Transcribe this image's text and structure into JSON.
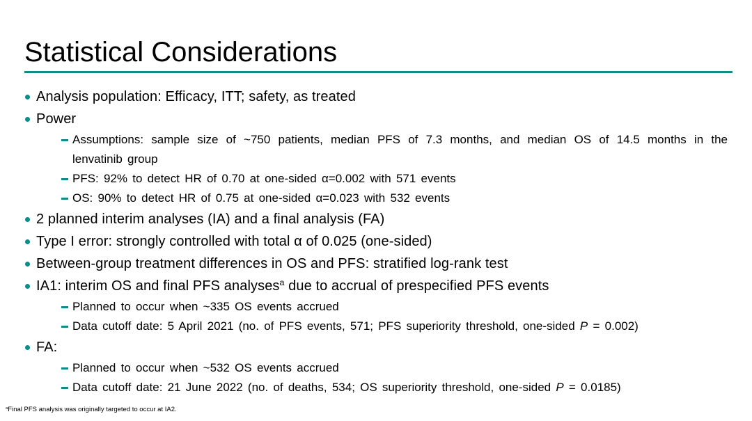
{
  "slide": {
    "title": "Statistical Considerations",
    "accent_color": "#0E8C8C",
    "footnote": {
      "sup": "a",
      "text": "Final PFS analysis was originally targeted to occur at IA2."
    }
  },
  "bullets": {
    "items": [
      {
        "level": 1,
        "text": "Analysis population: Efficacy, ITT; safety, as treated"
      },
      {
        "level": 1,
        "text": "Power"
      },
      {
        "level": 2,
        "text": "Assumptions: sample size of ~750 patients, median PFS of 7.3 months, and median OS of 14.5 months in the lenvatinib group"
      },
      {
        "level": 2,
        "text": "PFS: 92% to detect HR of 0.70 at one-sided α=0.002 with 571 events"
      },
      {
        "level": 2,
        "text": "OS: 90% to detect HR of 0.75 at one-sided α=0.023 with 532 events"
      },
      {
        "level": 1,
        "text": "2 planned interim analyses (IA) and a final analysis (FA)"
      },
      {
        "level": 1,
        "text": "Type I error: strongly controlled with total α of 0.025 (one-sided)"
      },
      {
        "level": 1,
        "text": "Between-group treatment differences in OS and PFS: stratified log-rank test"
      },
      {
        "level": 1,
        "prefix": "IA1: interim OS and final PFS analyses",
        "sup": "a",
        "suffix": " due to accrual of prespecified PFS events"
      },
      {
        "level": 2,
        "text": "Planned to occur when ~335 OS events accrued"
      },
      {
        "level": 2,
        "prefix": "Data cutoff date: 5 April 2021 (no. of PFS events, 571; PFS superiority threshold, one-sided ",
        "p_label": "P",
        "suffix": " = 0.002)"
      },
      {
        "level": 1,
        "text": "FA:"
      },
      {
        "level": 2,
        "text": "Planned to occur when ~532 OS events accrued"
      },
      {
        "level": 2,
        "prefix": "Data cutoff date: 21 June 2022 (no. of deaths, 534; OS superiority threshold, one-sided ",
        "p_label": "P",
        "suffix": " = 0.0185)"
      }
    ]
  }
}
